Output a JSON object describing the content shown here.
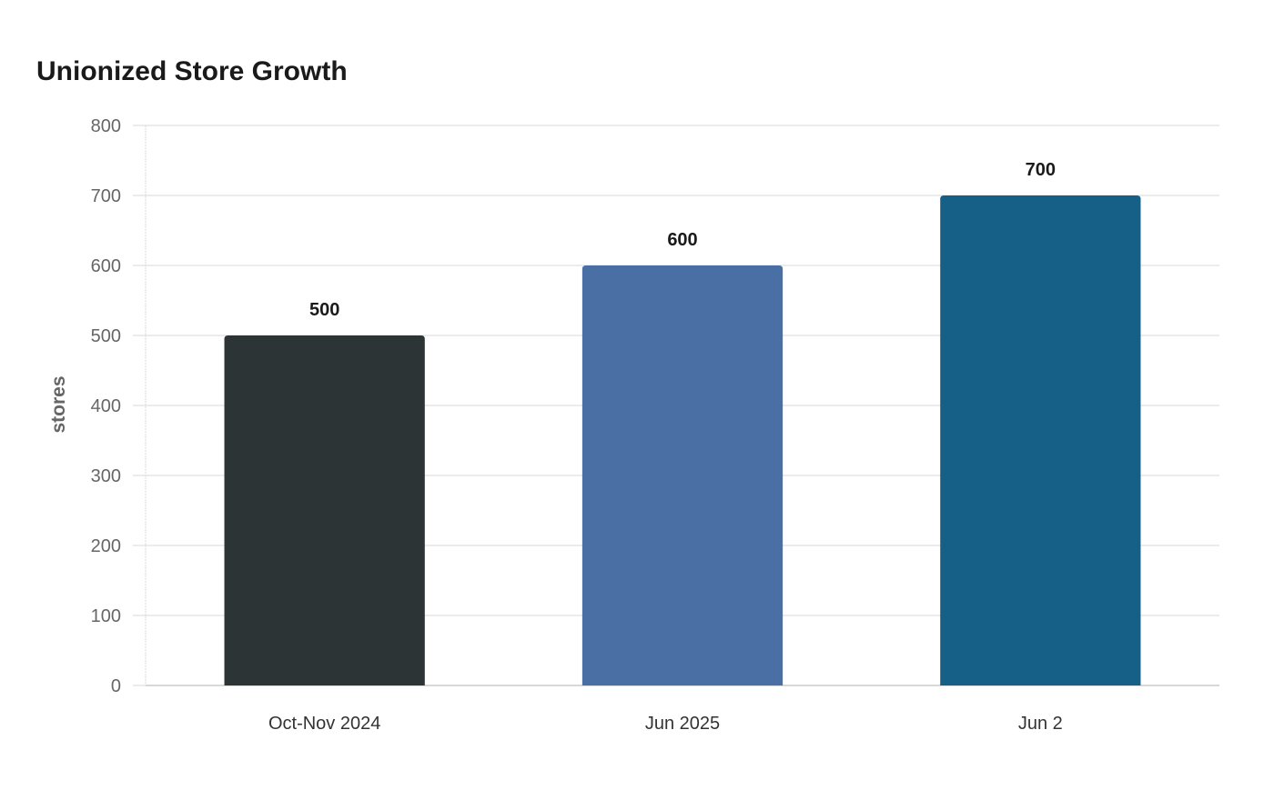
{
  "chart_data": {
    "type": "bar",
    "title": "Unionized Store Growth",
    "xlabel": "",
    "ylabel": "stores",
    "categories": [
      "Oct-Nov 2024",
      "Jun 2025",
      "Jun 2"
    ],
    "values": [
      500,
      600,
      700
    ],
    "data_labels": [
      "500",
      "600",
      "700"
    ],
    "colors": [
      "#2d3436",
      "#4a6fa5",
      "#166088"
    ],
    "ylim": [
      0,
      800
    ],
    "yticks": [
      0,
      100,
      200,
      300,
      400,
      500,
      600,
      700,
      800
    ],
    "grid": true,
    "legend": "none"
  }
}
